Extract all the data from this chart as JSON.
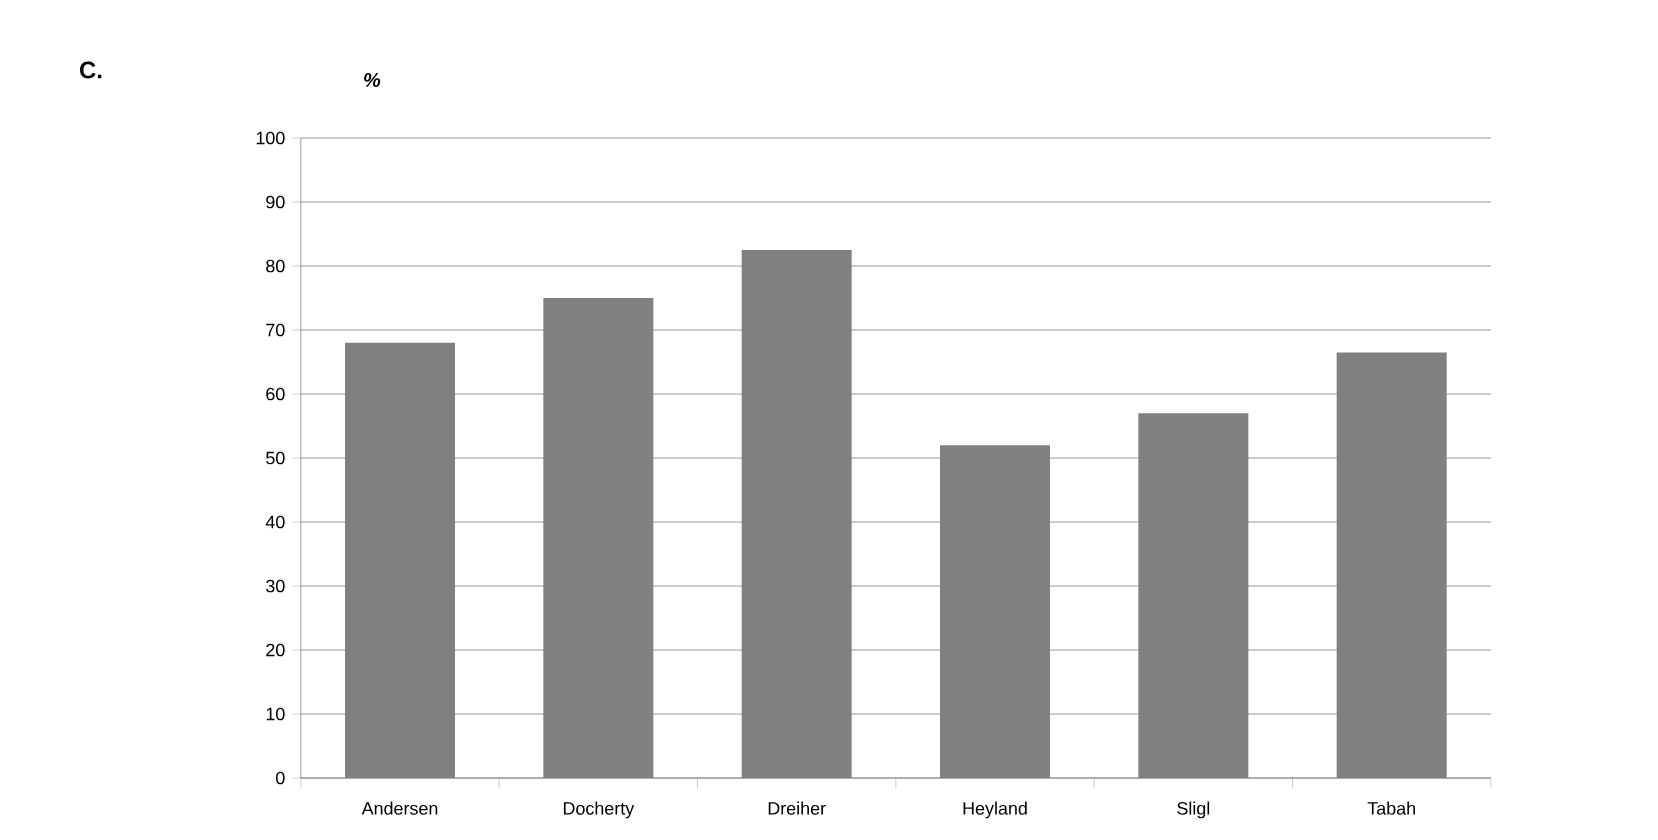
{
  "chart_data": {
    "type": "bar",
    "title": "C.",
    "ylabel": "%",
    "categories": [
      "Andersen",
      "Docherty",
      "Dreiher",
      "Heyland",
      "Sligl",
      "Tabah"
    ],
    "values": [
      68,
      75,
      82.5,
      52,
      57,
      66.5
    ],
    "color": "#808080",
    "ylim": [
      0,
      100
    ],
    "yticks": [
      0,
      10,
      20,
      30,
      40,
      50,
      60,
      70,
      80,
      90,
      100
    ],
    "grid": "y"
  }
}
